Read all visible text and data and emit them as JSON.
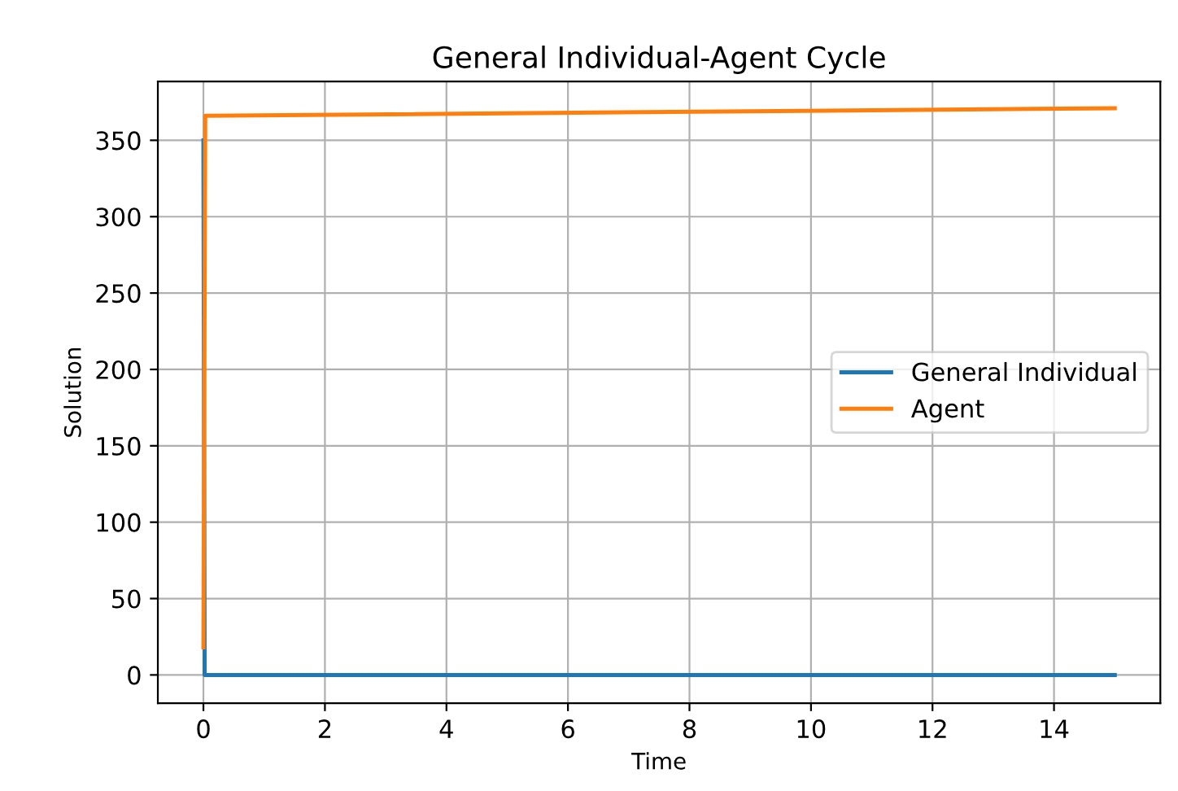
{
  "chart_data": {
    "type": "line",
    "title": "General Individual-Agent Cycle",
    "xlabel": "Time",
    "ylabel": "Solution",
    "series": [
      {
        "name": "General Individual",
        "color": "#1f77b4",
        "x": [
          0,
          0.02,
          15
        ],
        "values": [
          350,
          0,
          0
        ]
      },
      {
        "name": "Agent",
        "color": "#ff7f0e",
        "x": [
          0,
          0.03,
          15
        ],
        "values": [
          18,
          366,
          371
        ]
      }
    ],
    "xlim": [
      -0.75,
      15.75
    ],
    "ylim": [
      -18.5,
      388.5
    ],
    "xticks": [
      0,
      2,
      4,
      6,
      8,
      10,
      12,
      14
    ],
    "yticks": [
      0,
      50,
      100,
      150,
      200,
      250,
      300,
      350
    ],
    "grid": true,
    "legend": "right",
    "marker": "none",
    "line_style": "solid"
  }
}
